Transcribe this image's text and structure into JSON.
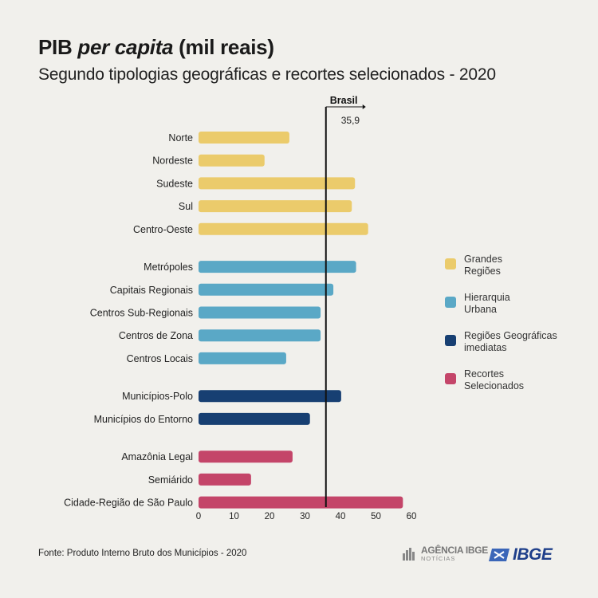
{
  "header": {
    "title_plain": "PIB",
    "title_italic": "per capita",
    "title_suffix": "(mil reais)",
    "subtitle": "Segundo tipologias geográficas e recortes selecionados - 2020"
  },
  "chart_data": {
    "type": "bar",
    "orientation": "horizontal",
    "title": "PIB per capita (mil reais)",
    "subtitle": "Segundo tipologias geográficas e recortes selecionados - 2020",
    "xlim": [
      0,
      60
    ],
    "xticks": [
      0,
      10,
      20,
      30,
      40,
      50,
      60
    ],
    "reference": {
      "label": "Brasil",
      "value": 35.9,
      "value_label": "35,9"
    },
    "groups": [
      {
        "name": "Grandes Regiões",
        "color": "#ebcb6b",
        "items": [
          {
            "label": "Norte",
            "value": 25.6
          },
          {
            "label": "Nordeste",
            "value": 18.6
          },
          {
            "label": "Sudeste",
            "value": 44.1
          },
          {
            "label": "Sul",
            "value": 43.2
          },
          {
            "label": "Centro-Oeste",
            "value": 47.8
          }
        ]
      },
      {
        "name": "Hierarquia Urbana",
        "color": "#5aa8c6",
        "items": [
          {
            "label": "Metrópoles",
            "value": 44.4
          },
          {
            "label": "Capitais Regionais",
            "value": 38.0
          },
          {
            "label": "Centros Sub-Regionais",
            "value": 34.4
          },
          {
            "label": "Centros de Zona",
            "value": 34.4
          },
          {
            "label": "Centros Locais",
            "value": 24.7
          }
        ]
      },
      {
        "name": "Regiões Geográficas imediatas",
        "color": "#173f72",
        "items": [
          {
            "label": "Municípios-Polo",
            "value": 40.2
          },
          {
            "label": "Municípios do Entorno",
            "value": 31.4
          }
        ]
      },
      {
        "name": "Recortes Selecionados",
        "color": "#c44569",
        "items": [
          {
            "label": "Amazônia Legal",
            "value": 26.5
          },
          {
            "label": "Semiárido",
            "value": 14.8
          },
          {
            "label": "Cidade-Região de São Paulo",
            "value": 57.6
          }
        ]
      }
    ]
  },
  "legend": [
    {
      "label": "Grandes\nRegiões",
      "color": "#ebcb6b"
    },
    {
      "label": "Hierarquia\nUrbana",
      "color": "#5aa8c6"
    },
    {
      "label": "Regiões Geográficas\nimediatas",
      "color": "#173f72"
    },
    {
      "label": "Recortes\nSelecionados",
      "color": "#c44569"
    }
  ],
  "footer": {
    "source": "Fonte: Produto Interno Bruto dos Municípios - 2020",
    "agencia_main": "AGÊNCIA IBGE",
    "agencia_sub": "NOTÍCIAS",
    "ibge_logo_text": "IBGE"
  }
}
